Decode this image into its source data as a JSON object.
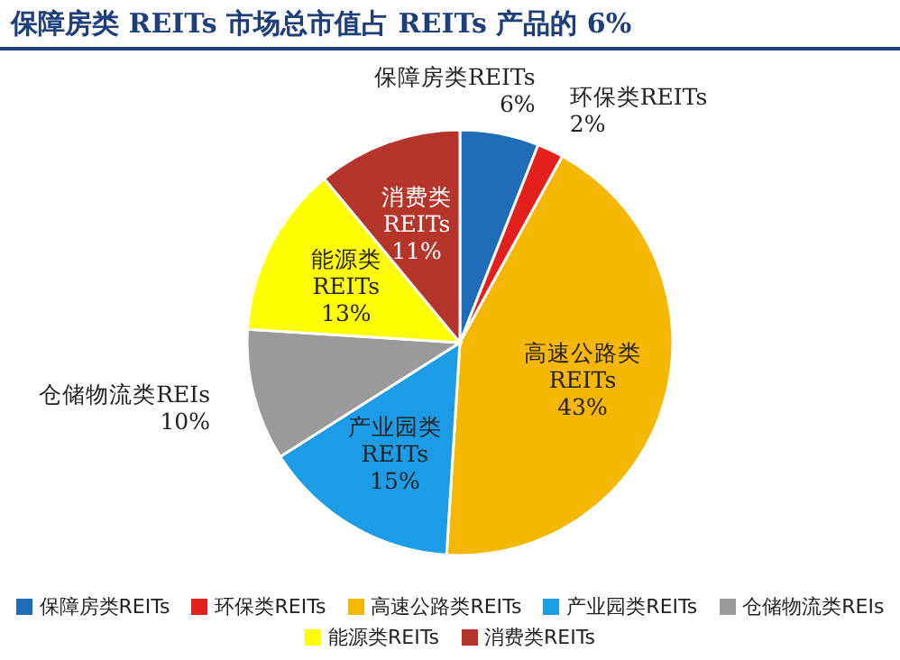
{
  "chart_data": {
    "type": "pie",
    "title": "保障房类 REITs 市场总市值占 REITs 产品的 6%",
    "categories": [
      "保障房类REITs",
      "环保类REITs",
      "高速公路类REITs",
      "产业园类REITs",
      "仓储物流类REIs",
      "能源类REITs",
      "消费类REITs"
    ],
    "values": [
      6,
      2,
      43,
      15,
      10,
      13,
      11
    ],
    "colors": [
      "#1f6cb8",
      "#e3201b",
      "#f5b700",
      "#1c9be6",
      "#9a9a9a",
      "#ffff00",
      "#b5352a"
    ],
    "value_labels": [
      "6%",
      "2%",
      "43%",
      "15%",
      "10%",
      "13%",
      "11%"
    ],
    "legend": "bottom"
  }
}
